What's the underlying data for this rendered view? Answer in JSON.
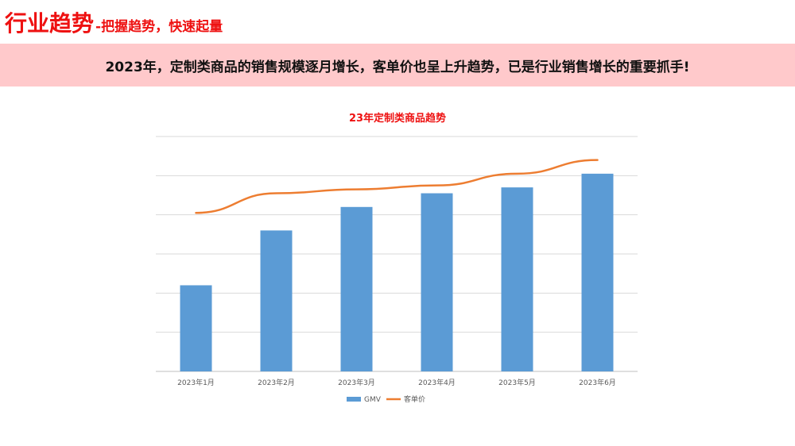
{
  "header": {
    "title": "行业趋势",
    "subtitle": "-把握趋势，快速起量"
  },
  "banner": {
    "text": "2023年，定制类商品的销售规模逐月增长，客单价也呈上升趋势，已是行业销售增长的重要抓手!"
  },
  "colors": {
    "accent": "#ee1111",
    "banner_bg": "#ffc9cb",
    "bar": "#5b9bd5",
    "line": "#ed7d31",
    "grid": "#d9d9d9"
  },
  "chart_data": {
    "type": "bar",
    "title": "23年定制类商品趋势",
    "categories": [
      "2023年1月",
      "2023年2月",
      "2023年3月",
      "2023年4月",
      "2023年5月",
      "2023年6月"
    ],
    "series": [
      {
        "name": "GMV",
        "type": "bar",
        "values": [
          2.2,
          3.6,
          4.2,
          4.55,
          4.7,
          5.05
        ]
      },
      {
        "name": "客单价",
        "type": "line",
        "values": [
          4.05,
          4.55,
          4.65,
          4.75,
          5.05,
          5.4
        ]
      }
    ],
    "ylim": [
      0,
      6
    ],
    "y_ticks_labeled": false,
    "grid": true,
    "legend": "bottom"
  }
}
